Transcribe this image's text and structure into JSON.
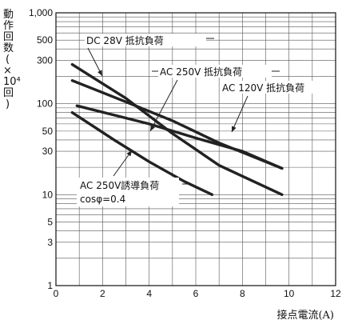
{
  "chart_data": {
    "type": "line",
    "xlabel": "接点電流(A)",
    "ylabel": "動作回数(×10⁴回)",
    "xlim": [
      0,
      12
    ],
    "ylim": [
      1,
      1000
    ],
    "yscale": "log",
    "grid": true,
    "x_ticks": [
      "0",
      "2",
      "4",
      "6",
      "8",
      "10",
      "12"
    ],
    "y_ticks": [
      "1",
      "3",
      "5",
      "10",
      "30",
      "50",
      "100",
      "300",
      "500",
      "1,000"
    ],
    "series": [
      {
        "name": "DC 28V 抵抗負荷",
        "x": [
          0.7,
          3.0,
          5.0,
          7.0,
          9.7
        ],
        "y": [
          270,
          115,
          47,
          21,
          10
        ]
      },
      {
        "name": "AC 250V 抵抗負荷",
        "x": [
          0.7,
          3.0,
          5.0,
          7.0,
          9.7
        ],
        "y": [
          180,
          105,
          65,
          37,
          19.5
        ]
      },
      {
        "name": "AC 120V 抵抗負荷",
        "x": [
          0.9,
          4.0,
          6.0,
          8.0,
          9.7
        ],
        "y": [
          95,
          60,
          42,
          30,
          19.5
        ]
      },
      {
        "name": "AC 250V誘導負荷 cosφ=0.4",
        "x": [
          0.7,
          2.5,
          4.0,
          5.5,
          6.7
        ],
        "y": [
          80,
          40,
          23,
          14,
          10
        ]
      }
    ],
    "annotations": [
      {
        "text": "DC 28V 抵抗負荷",
        "series": 0
      },
      {
        "text": "AC 250V 抵抗負荷",
        "series": 1
      },
      {
        "text": "AC 120V 抵抗負荷",
        "series": 2
      },
      {
        "text": "AC 250V誘導負荷",
        "series": 3
      },
      {
        "text": "cosφ=0.4",
        "series": 3
      }
    ]
  }
}
